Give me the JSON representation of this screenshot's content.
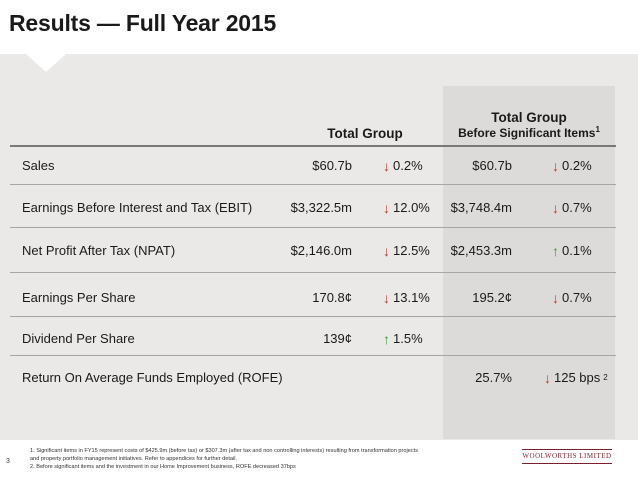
{
  "title": "Results — Full Year 2015",
  "headers": {
    "group": "Total Group",
    "group_before_line1": "Total Group",
    "group_before_line2": "Before Significant Items",
    "group_before_sup": "1"
  },
  "rows": [
    {
      "label": "Sales",
      "value": "$60.7b",
      "change": "0.2%",
      "change_dir": "down",
      "value2": "$60.7b",
      "change2": "0.2%",
      "change2_dir": "down"
    },
    {
      "label": "Earnings Before Interest and Tax (EBIT)",
      "value": "$3,322.5m",
      "change": "12.0%",
      "change_dir": "down",
      "value2": "$3,748.4m",
      "change2": "0.7%",
      "change2_dir": "down"
    },
    {
      "label": "Net Profit After Tax (NPAT)",
      "value": "$2,146.0m",
      "change": "12.5%",
      "change_dir": "down",
      "value2": "$2,453.3m",
      "change2": "0.1%",
      "change2_dir": "up"
    },
    {
      "label": "Earnings Per Share",
      "value": "170.8¢",
      "change": "13.1%",
      "change_dir": "down",
      "value2": "195.2¢",
      "change2": "0.7%",
      "change2_dir": "down"
    },
    {
      "label": "Dividend Per Share",
      "value": "139¢",
      "change": "1.5%",
      "change_dir": "up",
      "value2": "",
      "change2": "",
      "change2_dir": ""
    },
    {
      "label": "Return On Average Funds Employed (ROFE)",
      "value": "",
      "change": "",
      "change_dir": "",
      "value2": "25.7%",
      "change2": "125 bps",
      "change2_sup": "2",
      "change2_dir": "down"
    }
  ],
  "footnotes": [
    "1. Significant items in FY15 represent costs of $425.9m (before tax) or $307.3m (after tax and non controlling interests) resulting from transformation projects and property portfolio management initiatives. Refer to appendices for further detail.",
    "2. Before significant items and the investment in our Home Improvement business, ROFE decreased 37bps"
  ],
  "page_number": "3",
  "logo_text": "WOOLWORTHS LIMITED",
  "colors": {
    "down_arrow": "#c0392b",
    "up_arrow": "#3a9a3a",
    "panel": "#eae9e7",
    "shaded_column": "#dcdbd9",
    "logo": "#7a1f2b"
  }
}
